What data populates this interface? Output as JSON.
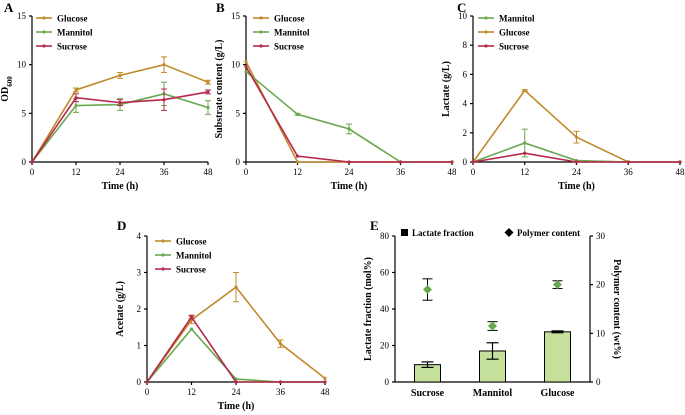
{
  "chart_data": [
    {
      "panel": "A",
      "type": "line",
      "xlabel": "Time (h)",
      "ylabel": "OD",
      "ylabel_sub": "600",
      "x": [
        0,
        12,
        24,
        36,
        48
      ],
      "xticks": [
        0,
        12,
        24,
        36,
        48
      ],
      "xlim": [
        0,
        48
      ],
      "ylim": [
        0,
        15
      ],
      "yticks": [
        0,
        5,
        10,
        15
      ],
      "legend_order": [
        "Glucose",
        "Mannitol",
        "Sucrose"
      ],
      "series": [
        {
          "name": "Glucose",
          "color": "#c08a2a",
          "values": [
            0,
            7.4,
            8.9,
            10.0,
            8.2
          ],
          "errors": [
            0,
            0.2,
            0.3,
            0.8,
            0.2
          ]
        },
        {
          "name": "Mannitol",
          "color": "#6aa84f",
          "values": [
            0,
            5.8,
            5.9,
            7.0,
            5.6
          ],
          "errors": [
            0,
            0.7,
            0.6,
            1.2,
            0.7
          ]
        },
        {
          "name": "Sucrose",
          "color": "#b5294b",
          "values": [
            0,
            6.6,
            6.1,
            6.4,
            7.2
          ],
          "errors": [
            0,
            0.4,
            0.3,
            1.1,
            0.2
          ]
        }
      ]
    },
    {
      "panel": "B",
      "type": "line",
      "xlabel": "Time (h)",
      "ylabel": "Substrate content (g/L)",
      "x": [
        0,
        12,
        24,
        36,
        48
      ],
      "xticks": [
        0,
        12,
        24,
        36,
        48
      ],
      "xlim": [
        0,
        48
      ],
      "ylim": [
        0,
        15
      ],
      "yticks": [
        0,
        5,
        10,
        15
      ],
      "legend_order": [
        "Glucose",
        "Mannitol",
        "Sucrose"
      ],
      "series": [
        {
          "name": "Glucose",
          "color": "#c08a2a",
          "values": [
            10.3,
            0,
            0,
            0,
            0
          ],
          "errors": [
            0,
            0,
            0,
            0,
            0
          ]
        },
        {
          "name": "Mannitol",
          "color": "#6aa84f",
          "values": [
            9.3,
            4.9,
            3.4,
            0,
            0
          ],
          "errors": [
            0,
            0.1,
            0.5,
            0,
            0
          ]
        },
        {
          "name": "Sucrose",
          "color": "#b5294b",
          "values": [
            9.8,
            0.6,
            0,
            0,
            0
          ],
          "errors": [
            0,
            0,
            0,
            0,
            0
          ]
        }
      ]
    },
    {
      "panel": "C",
      "type": "line",
      "xlabel": "Time (h)",
      "ylabel": "Lactate (g/L)",
      "x": [
        0,
        12,
        24,
        36,
        48
      ],
      "xticks": [
        0,
        12,
        24,
        36,
        48
      ],
      "xlim": [
        0,
        48
      ],
      "ylim": [
        0,
        10
      ],
      "yticks": [
        0,
        2,
        4,
        6,
        8,
        10
      ],
      "legend_order": [
        "Mannitol",
        "Glucose",
        "Sucrose"
      ],
      "series": [
        {
          "name": "Glucose",
          "color": "#c08a2a",
          "values": [
            0,
            4.9,
            1.7,
            0,
            0
          ],
          "errors": [
            0,
            0.05,
            0.4,
            0,
            0
          ]
        },
        {
          "name": "Mannitol",
          "color": "#6aa84f",
          "values": [
            0,
            1.3,
            0.1,
            0,
            0
          ],
          "errors": [
            0,
            0.95,
            0,
            0,
            0
          ]
        },
        {
          "name": "Sucrose",
          "color": "#b5294b",
          "values": [
            0,
            0.6,
            0,
            0,
            0
          ],
          "errors": [
            0,
            0,
            0,
            0,
            0
          ]
        }
      ]
    },
    {
      "panel": "D",
      "type": "line",
      "xlabel": "Time (h)",
      "ylabel": "Acetate (g/L)",
      "x": [
        0,
        12,
        24,
        36,
        48
      ],
      "xticks": [
        0,
        12,
        24,
        36,
        48
      ],
      "xlim": [
        0,
        48
      ],
      "ylim": [
        0,
        4
      ],
      "yticks": [
        0,
        1,
        2,
        3,
        4
      ],
      "legend_order": [
        "Glucose",
        "Mannitol",
        "Sucrose"
      ],
      "series": [
        {
          "name": "Glucose",
          "color": "#c08a2a",
          "values": [
            0,
            1.7,
            2.6,
            1.05,
            0.1
          ],
          "errors": [
            0,
            0.1,
            0.4,
            0.1,
            0
          ]
        },
        {
          "name": "Mannitol",
          "color": "#6aa84f",
          "values": [
            0,
            1.45,
            0.08,
            0,
            0
          ],
          "errors": [
            0,
            0,
            0,
            0,
            0
          ]
        },
        {
          "name": "Sucrose",
          "color": "#b5294b",
          "values": [
            0,
            1.78,
            0,
            0,
            0
          ],
          "errors": [
            0,
            0.05,
            0,
            0,
            0
          ]
        }
      ]
    },
    {
      "panel": "E",
      "type": "bar",
      "categories": [
        "Sucrose",
        "Mannitol",
        "Glucose"
      ],
      "xlabel": "",
      "ylabel": "Lactate fraction (mol%)",
      "ylim": [
        0,
        80
      ],
      "yticks": [
        0,
        20,
        40,
        60,
        80
      ],
      "ylabel_right": "Polymer content (wt%)",
      "ylim_right": [
        0,
        30
      ],
      "yticks_right": [
        0,
        10,
        20,
        30
      ],
      "bar_color": "#c5e09a",
      "marker_color": "#6aa84f",
      "legend": [
        "Lactate fraction",
        "Polymer content"
      ],
      "series": [
        {
          "name": "Lactate fraction",
          "axis": "left",
          "values": [
            9.5,
            17,
            27.5
          ],
          "errors": [
            1.5,
            4.5,
            0.5
          ]
        },
        {
          "name": "Polymer content",
          "axis": "right",
          "values": [
            19,
            11.5,
            20
          ],
          "errors": [
            2.2,
            0.9,
            0.8
          ]
        }
      ]
    }
  ]
}
